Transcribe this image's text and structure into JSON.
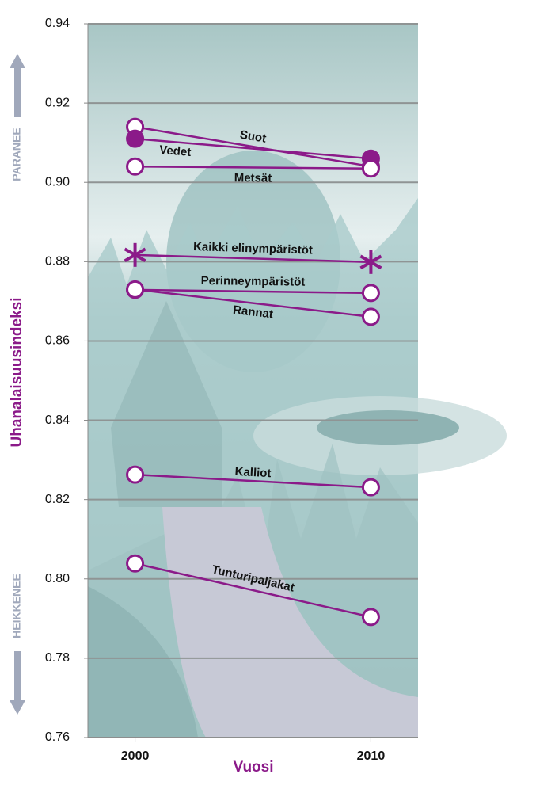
{
  "chart_data": {
    "type": "slope",
    "ylabel": "Uhanalaisuusindeksi",
    "xlabel": "Vuosi",
    "annotations": [
      "PARANEE",
      "HEIKKENEE"
    ],
    "x": [
      2000,
      2010
    ],
    "xlim": [
      1998,
      2012
    ],
    "xticks": [
      2000,
      2010
    ],
    "ylim": [
      0.76,
      0.94
    ],
    "yticks": [
      0.94,
      0.92,
      {
        "value": 0.9,
        "label": "0.90"
      },
      0.88,
      0.86,
      0.84,
      0.82,
      {
        "value": 0.8,
        "label": "0.80"
      },
      0.78,
      0.76
    ],
    "grid": true,
    "color": "#8b1a89",
    "series": [
      {
        "name": "Suot",
        "marker": "open",
        "values": [
          0.914,
          0.904
        ]
      },
      {
        "name": "Vedet",
        "marker": "filled",
        "values": [
          0.911,
          0.906
        ]
      },
      {
        "name": "Metsät",
        "marker": "open",
        "values": [
          0.904,
          0.9035
        ]
      },
      {
        "name": "Kaikki elinympäristöt",
        "marker": "star",
        "values": [
          0.8817,
          0.8799
        ]
      },
      {
        "name": "Perinneympäristöt",
        "marker": "open",
        "values": [
          0.8729,
          0.8721
        ]
      },
      {
        "name": "Rannat",
        "marker": "open",
        "values": [
          0.873,
          0.8661
        ]
      },
      {
        "name": "Kalliot",
        "marker": "open",
        "values": [
          0.8263,
          0.8231
        ]
      },
      {
        "name": "Tunturipaljakat",
        "marker": "open",
        "values": [
          0.8039,
          0.7904
        ]
      }
    ]
  }
}
